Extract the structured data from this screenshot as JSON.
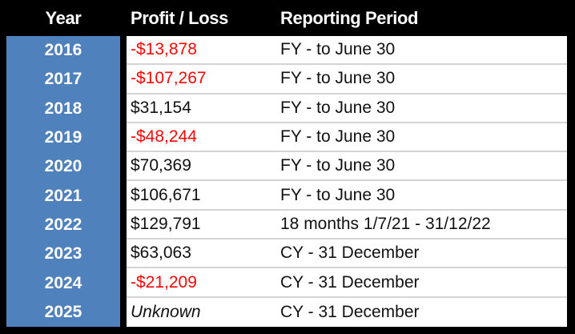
{
  "chart_data": {
    "type": "table",
    "columns": [
      "Year",
      "Profit / Loss",
      "Reporting Period"
    ],
    "rows": [
      [
        "2016",
        "-$13,878",
        "FY - to June 30"
      ],
      [
        "2017",
        "-$107,267",
        "FY - to June 30"
      ],
      [
        "2018",
        "$31,154",
        "FY - to June 30"
      ],
      [
        "2019",
        "-$48,244",
        "FY - to June 30"
      ],
      [
        "2020",
        "$70,369",
        "FY - to June 30"
      ],
      [
        "2021",
        "$106,671",
        "FY - to June 30"
      ],
      [
        "2022",
        "$129,791",
        "18 months 1/7/21 - 31/12/22"
      ],
      [
        "2023",
        "$63,063",
        "CY - 31 December"
      ],
      [
        "2024",
        "-$21,209",
        "CY - 31 December"
      ],
      [
        "2025",
        "Unknown",
        "CY - 31 December"
      ]
    ],
    "layout_hints": {
      "negative_profit_values_shown_red": true,
      "unknown_value_shown_italic": true,
      "year_column_highlighted": true
    }
  },
  "colors": {
    "background": "#000000",
    "year_column": "#4F81BD",
    "header_text": "#FFFFFF",
    "year_text": "#FFFFFF",
    "value_text": "#111111",
    "negative_value": "#FB0605",
    "cell_background": "#FFFFFF",
    "row_separator": "#D4D4D4"
  }
}
